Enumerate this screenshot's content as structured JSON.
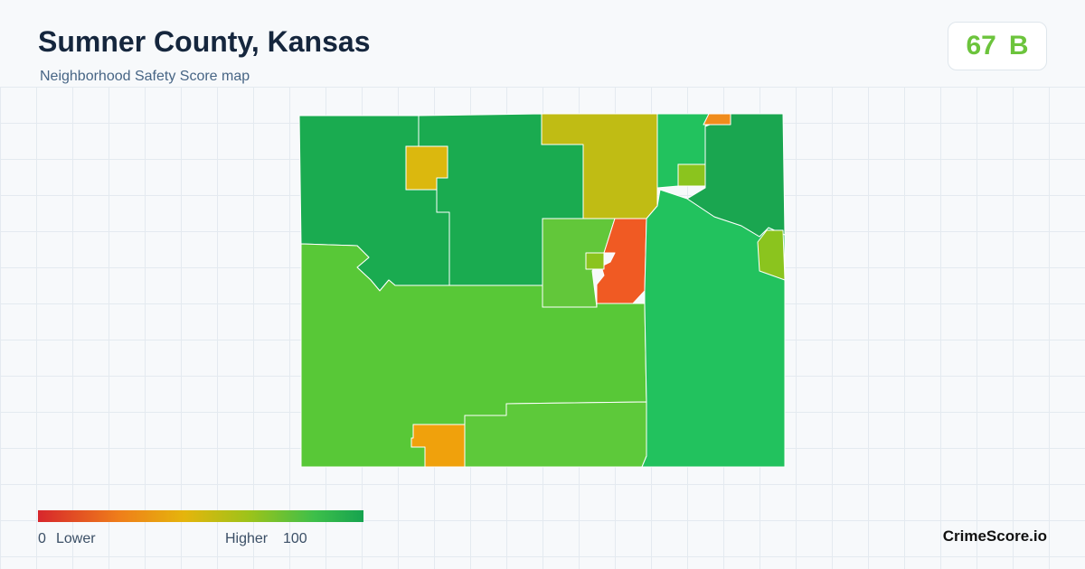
{
  "header": {
    "title": "Sumner County, Kansas",
    "subtitle": "Neighborhood Safety Score map"
  },
  "score": {
    "value": 67,
    "grade": "B"
  },
  "legend": {
    "min": 0,
    "min_label": "Lower",
    "max_label": "Higher",
    "max": 100
  },
  "brand": "CrimeScore.io"
}
